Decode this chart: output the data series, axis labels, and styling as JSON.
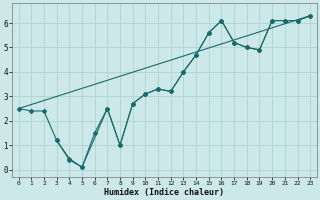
{
  "xlabel": "Humidex (Indice chaleur)",
  "bg_color": "#cce8e8",
  "grid_color": "#aacece",
  "line_color": "#1a6b6b",
  "xlim": [
    -0.5,
    23.5
  ],
  "ylim": [
    -0.3,
    6.8
  ],
  "xticks": [
    0,
    1,
    2,
    3,
    4,
    5,
    6,
    7,
    8,
    9,
    10,
    11,
    12,
    13,
    14,
    15,
    16,
    17,
    18,
    19,
    20,
    21,
    22,
    23
  ],
  "yticks": [
    0,
    1,
    2,
    3,
    4,
    5,
    6
  ],
  "line1_x": [
    0,
    1,
    2,
    3,
    4,
    5,
    6,
    7,
    8,
    9,
    10,
    11,
    12,
    13,
    14,
    15,
    16,
    17,
    18,
    19,
    20,
    21,
    22,
    23
  ],
  "line1_y": [
    2.5,
    2.4,
    2.4,
    1.2,
    0.4,
    0.1,
    1.5,
    2.5,
    1.0,
    2.7,
    3.1,
    3.3,
    3.2,
    4.0,
    4.7,
    5.6,
    6.1,
    5.2,
    5.0,
    4.9,
    6.1,
    6.1,
    6.1,
    6.3
  ],
  "line2_x": [
    0,
    23
  ],
  "line2_y": [
    2.5,
    6.3
  ],
  "line3_x": [
    3,
    4,
    5,
    7,
    8,
    9,
    10,
    11,
    12,
    13,
    14,
    15,
    16,
    17,
    18,
    19,
    20,
    21,
    22,
    23
  ],
  "line3_y": [
    1.2,
    0.45,
    0.1,
    2.5,
    1.0,
    2.7,
    3.1,
    3.3,
    3.2,
    4.0,
    4.7,
    5.6,
    6.1,
    5.2,
    5.0,
    4.9,
    6.1,
    6.1,
    6.1,
    6.3
  ]
}
